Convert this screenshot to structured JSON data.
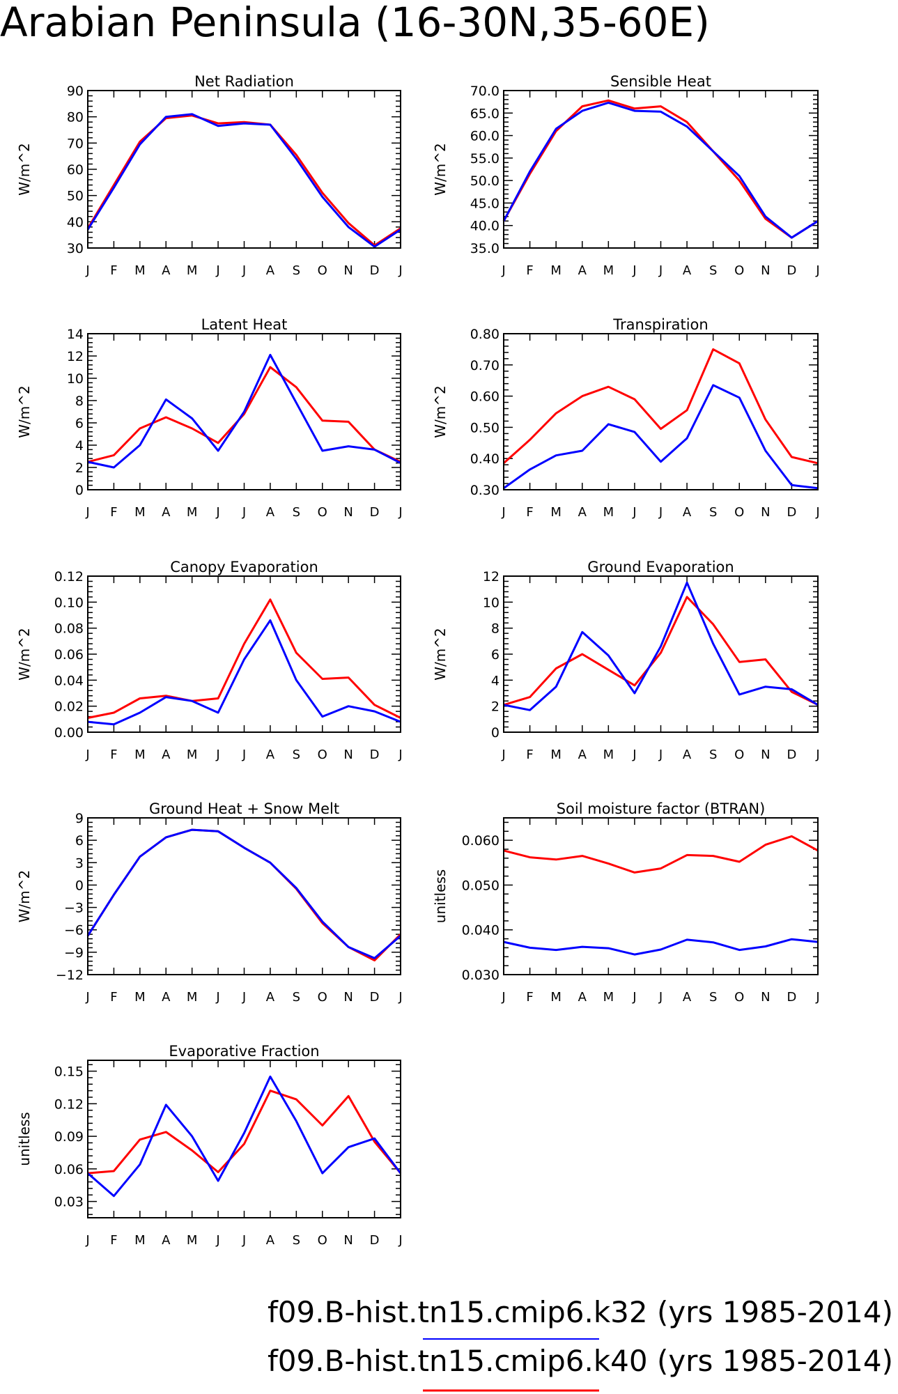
{
  "title": "Arabian Peninsula (16-30N,35-60E)",
  "legend": [
    {
      "label": "f09.B-hist.tn15.cmip6.k32 (yrs 1985-2014)",
      "color": "#0000ff"
    },
    {
      "label": "f09.B-hist.tn15.cmip6.k40 (yrs 1985-2014)",
      "color": "#ff0000"
    }
  ],
  "chart_data": [
    {
      "type": "line",
      "title": "Net Radiation",
      "ylabel": "W/m^2",
      "ylim": [
        30,
        90
      ],
      "yticks": [
        {
          "v": 30,
          "t": "30"
        },
        {
          "v": 40,
          "t": "40"
        },
        {
          "v": 50,
          "t": "50"
        },
        {
          "v": 60,
          "t": "60"
        },
        {
          "v": 70,
          "t": "70"
        },
        {
          "v": 80,
          "t": "80"
        },
        {
          "v": 90,
          "t": "90"
        }
      ],
      "x": [
        "J",
        "F",
        "M",
        "A",
        "M",
        "J",
        "J",
        "A",
        "S",
        "O",
        "N",
        "D",
        "J"
      ],
      "series": [
        {
          "color": "#ff0000",
          "values": [
            37.5,
            54,
            70.5,
            79.5,
            80.5,
            77.5,
            78,
            77,
            65.5,
            51,
            39.5,
            31,
            37.5
          ]
        },
        {
          "color": "#0000ff",
          "values": [
            37,
            53,
            69.5,
            80,
            81,
            76.5,
            77.5,
            77,
            64,
            49.5,
            38,
            30.5,
            37
          ]
        }
      ]
    },
    {
      "type": "line",
      "title": "Sensible Heat",
      "ylabel": "W/m^2",
      "ylim": [
        35,
        70
      ],
      "yticks": [
        {
          "v": 35,
          "t": "35.0"
        },
        {
          "v": 40,
          "t": "40.0"
        },
        {
          "v": 45,
          "t": "45.0"
        },
        {
          "v": 50,
          "t": "50.0"
        },
        {
          "v": 55,
          "t": "55.0"
        },
        {
          "v": 60,
          "t": "60.0"
        },
        {
          "v": 65,
          "t": "65.0"
        },
        {
          "v": 70,
          "t": "70.0"
        }
      ],
      "x": [
        "J",
        "F",
        "M",
        "A",
        "M",
        "J",
        "J",
        "A",
        "S",
        "O",
        "N",
        "D",
        "J"
      ],
      "series": [
        {
          "color": "#ff0000",
          "values": [
            41,
            51.5,
            61,
            66.5,
            67.8,
            66,
            66.5,
            63,
            56.5,
            50,
            41.5,
            37.3,
            41
          ]
        },
        {
          "color": "#0000ff",
          "values": [
            41,
            52,
            61.5,
            65.5,
            67.3,
            65.5,
            65.3,
            62,
            56.5,
            51,
            42,
            37.3,
            41
          ]
        }
      ]
    },
    {
      "type": "line",
      "title": "Latent Heat",
      "ylabel": "W/m^2",
      "ylim": [
        0,
        14
      ],
      "yticks": [
        {
          "v": 0,
          "t": "0"
        },
        {
          "v": 2,
          "t": "2"
        },
        {
          "v": 4,
          "t": "4"
        },
        {
          "v": 6,
          "t": "6"
        },
        {
          "v": 8,
          "t": "8"
        },
        {
          "v": 10,
          "t": "10"
        },
        {
          "v": 12,
          "t": "12"
        },
        {
          "v": 14,
          "t": "14"
        }
      ],
      "x": [
        "J",
        "F",
        "M",
        "A",
        "M",
        "J",
        "J",
        "A",
        "S",
        "O",
        "N",
        "D",
        "J"
      ],
      "series": [
        {
          "color": "#ff0000",
          "values": [
            2.5,
            3.1,
            5.5,
            6.5,
            5.5,
            4.2,
            6.8,
            11,
            9.2,
            6.2,
            6.1,
            3.6,
            2.5
          ]
        },
        {
          "color": "#0000ff",
          "values": [
            2.5,
            2,
            4,
            8.1,
            6.4,
            3.5,
            7,
            12.1,
            7.8,
            3.5,
            3.9,
            3.6,
            2.4
          ]
        }
      ]
    },
    {
      "type": "line",
      "title": "Transpiration",
      "ylabel": "W/m^2",
      "ylim": [
        0.3,
        0.8
      ],
      "yticks": [
        {
          "v": 0.3,
          "t": "0.30"
        },
        {
          "v": 0.4,
          "t": "0.40"
        },
        {
          "v": 0.5,
          "t": "0.50"
        },
        {
          "v": 0.6,
          "t": "0.60"
        },
        {
          "v": 0.7,
          "t": "0.70"
        },
        {
          "v": 0.8,
          "t": "0.80"
        }
      ],
      "x": [
        "J",
        "F",
        "M",
        "A",
        "M",
        "J",
        "J",
        "A",
        "S",
        "O",
        "N",
        "D",
        "J"
      ],
      "series": [
        {
          "color": "#ff0000",
          "values": [
            0.385,
            0.46,
            0.545,
            0.6,
            0.63,
            0.59,
            0.495,
            0.555,
            0.75,
            0.705,
            0.525,
            0.405,
            0.385
          ]
        },
        {
          "color": "#0000ff",
          "values": [
            0.305,
            0.365,
            0.41,
            0.425,
            0.51,
            0.485,
            0.39,
            0.465,
            0.635,
            0.595,
            0.425,
            0.315,
            0.305
          ]
        }
      ]
    },
    {
      "type": "line",
      "title": "Canopy Evaporation",
      "ylabel": "W/m^2",
      "ylim": [
        0,
        0.12
      ],
      "yticks": [
        {
          "v": 0,
          "t": "0.00"
        },
        {
          "v": 0.02,
          "t": "0.02"
        },
        {
          "v": 0.04,
          "t": "0.04"
        },
        {
          "v": 0.06,
          "t": "0.06"
        },
        {
          "v": 0.08,
          "t": "0.08"
        },
        {
          "v": 0.1,
          "t": "0.10"
        },
        {
          "v": 0.12,
          "t": "0.12"
        }
      ],
      "x": [
        "J",
        "F",
        "M",
        "A",
        "M",
        "J",
        "J",
        "A",
        "S",
        "O",
        "N",
        "D",
        "J"
      ],
      "series": [
        {
          "color": "#ff0000",
          "values": [
            0.011,
            0.015,
            0.026,
            0.028,
            0.024,
            0.026,
            0.068,
            0.102,
            0.061,
            0.041,
            0.042,
            0.021,
            0.011
          ]
        },
        {
          "color": "#0000ff",
          "values": [
            0.008,
            0.006,
            0.015,
            0.027,
            0.024,
            0.015,
            0.056,
            0.086,
            0.04,
            0.012,
            0.02,
            0.016,
            0.008
          ]
        }
      ]
    },
    {
      "type": "line",
      "title": "Ground Evaporation",
      "ylabel": "W/m^2",
      "ylim": [
        0,
        12
      ],
      "yticks": [
        {
          "v": 0,
          "t": "0"
        },
        {
          "v": 2,
          "t": "2"
        },
        {
          "v": 4,
          "t": "4"
        },
        {
          "v": 6,
          "t": "6"
        },
        {
          "v": 8,
          "t": "8"
        },
        {
          "v": 10,
          "t": "10"
        },
        {
          "v": 12,
          "t": "12"
        }
      ],
      "x": [
        "J",
        "F",
        "M",
        "A",
        "M",
        "J",
        "J",
        "A",
        "S",
        "O",
        "N",
        "D",
        "J"
      ],
      "series": [
        {
          "color": "#ff0000",
          "values": [
            2.1,
            2.7,
            4.9,
            6,
            4.8,
            3.6,
            6.1,
            10.4,
            8.3,
            5.4,
            5.6,
            3.1,
            2.1
          ]
        },
        {
          "color": "#0000ff",
          "values": [
            2.1,
            1.7,
            3.5,
            7.7,
            5.9,
            3,
            6.6,
            11.5,
            6.8,
            2.9,
            3.5,
            3.3,
            2.1
          ]
        }
      ]
    },
    {
      "type": "line",
      "title": "Ground Heat + Snow Melt",
      "ylabel": "W/m^2",
      "ylim": [
        -12,
        9
      ],
      "yticks": [
        {
          "v": -12,
          "t": "−12"
        },
        {
          "v": -9,
          "t": "−9"
        },
        {
          "v": -6,
          "t": "−6"
        },
        {
          "v": -3,
          "t": "−3"
        },
        {
          "v": 0,
          "t": "0"
        },
        {
          "v": 3,
          "t": "3"
        },
        {
          "v": 6,
          "t": "6"
        },
        {
          "v": 9,
          "t": "9"
        }
      ],
      "x": [
        "J",
        "F",
        "M",
        "A",
        "M",
        "J",
        "J",
        "A",
        "S",
        "O",
        "N",
        "D",
        "J"
      ],
      "series": [
        {
          "color": "#ff0000",
          "values": [
            -6.8,
            -1.3,
            3.8,
            6.4,
            7.4,
            7.2,
            5,
            3,
            -0.5,
            -5.1,
            -8.3,
            -10.1,
            -6.6
          ]
        },
        {
          "color": "#0000ff",
          "values": [
            -6.8,
            -1.3,
            3.8,
            6.4,
            7.4,
            7.2,
            5,
            3,
            -0.4,
            -4.9,
            -8.3,
            -9.8,
            -6.8
          ]
        }
      ]
    },
    {
      "type": "line",
      "title": "Soil moisture factor (BTRAN)",
      "ylabel": "unitless",
      "ylim": [
        0.03,
        0.065
      ],
      "yticks": [
        {
          "v": 0.03,
          "t": "0.030"
        },
        {
          "v": 0.04,
          "t": "0.040"
        },
        {
          "v": 0.05,
          "t": "0.050"
        },
        {
          "v": 0.06,
          "t": "0.060"
        }
      ],
      "x": [
        "J",
        "F",
        "M",
        "A",
        "M",
        "J",
        "J",
        "A",
        "S",
        "O",
        "N",
        "D",
        "J"
      ],
      "series": [
        {
          "color": "#ff0000",
          "values": [
            0.0577,
            0.0562,
            0.0557,
            0.0565,
            0.0548,
            0.0528,
            0.0537,
            0.0567,
            0.0565,
            0.0552,
            0.059,
            0.0609,
            0.0577
          ]
        },
        {
          "color": "#0000ff",
          "values": [
            0.0373,
            0.036,
            0.0355,
            0.0362,
            0.0359,
            0.0345,
            0.0356,
            0.0378,
            0.0372,
            0.0355,
            0.0363,
            0.0379,
            0.0373
          ]
        }
      ]
    },
    {
      "type": "line",
      "title": "Evaporative Fraction",
      "ylabel": "unitless",
      "ylim": [
        0.015,
        0.16
      ],
      "yticks": [
        {
          "v": 0.03,
          "t": "0.03"
        },
        {
          "v": 0.06,
          "t": "0.06"
        },
        {
          "v": 0.09,
          "t": "0.09"
        },
        {
          "v": 0.12,
          "t": "0.12"
        },
        {
          "v": 0.15,
          "t": "0.15"
        }
      ],
      "x": [
        "J",
        "F",
        "M",
        "A",
        "M",
        "J",
        "J",
        "A",
        "S",
        "O",
        "N",
        "D",
        "J"
      ],
      "series": [
        {
          "color": "#ff0000",
          "values": [
            0.056,
            0.058,
            0.087,
            0.094,
            0.077,
            0.057,
            0.083,
            0.132,
            0.124,
            0.1,
            0.127,
            0.085,
            0.056
          ]
        },
        {
          "color": "#0000ff",
          "values": [
            0.056,
            0.035,
            0.064,
            0.119,
            0.09,
            0.049,
            0.093,
            0.145,
            0.104,
            0.056,
            0.08,
            0.088,
            0.056
          ]
        }
      ]
    }
  ]
}
